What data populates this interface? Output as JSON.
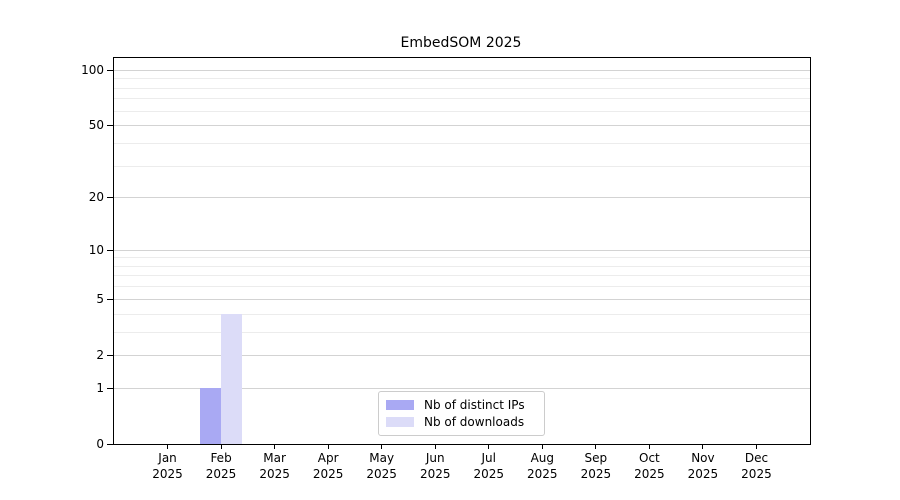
{
  "chart_data": {
    "type": "bar",
    "title": "EmbedSOM 2025",
    "categories": [
      "Jan 2025",
      "Feb 2025",
      "Mar 2025",
      "Apr 2025",
      "May 2025",
      "Jun 2025",
      "Jul 2025",
      "Aug 2025",
      "Sep 2025",
      "Oct 2025",
      "Nov 2025",
      "Dec 2025"
    ],
    "series": [
      {
        "name": "Nb of distinct IPs",
        "color": "#a9a9f3",
        "values": [
          0,
          1,
          0,
          0,
          0,
          0,
          0,
          0,
          0,
          0,
          0,
          0
        ]
      },
      {
        "name": "Nb of downloads",
        "color": "#dcdcf8",
        "values": [
          0,
          4,
          0,
          0,
          0,
          0,
          0,
          0,
          0,
          0,
          0,
          0
        ]
      }
    ],
    "xlabel": "",
    "ylabel": "",
    "yscale": "log1p",
    "ylim": [
      0,
      116
    ],
    "yticks": [
      0,
      1,
      2,
      5,
      10,
      20,
      50,
      100
    ],
    "yticks_minor": [
      3,
      4,
      6,
      7,
      8,
      9,
      30,
      40,
      60,
      70,
      80,
      90
    ],
    "grid": true,
    "legend_position": "lower center",
    "bar_width_fraction": 0.4
  },
  "colors": {
    "background": "#ffffff",
    "axis": "#000000",
    "text": "#000000",
    "grid_major": "#d3d3d3",
    "grid_minor": "#ececec",
    "legend_border": "#cccccc"
  }
}
